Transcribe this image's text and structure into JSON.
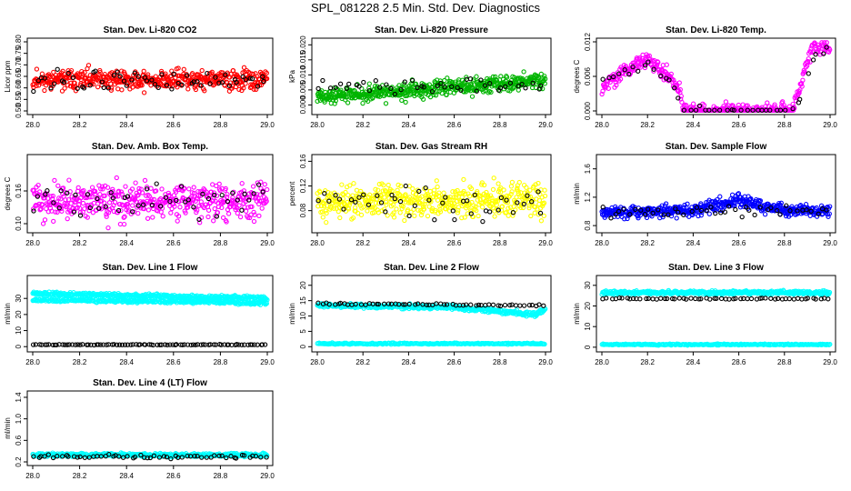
{
  "title": "SPL_081228  2.5 Min. Std. Dev. Diagnostics",
  "chart_data": [
    {
      "type": "scatter",
      "title": "Stan. Dev. Li-820 CO2",
      "ylabel": "Licor ppm",
      "xlim": [
        28.0,
        29.0
      ],
      "ylim": [
        0.5,
        0.8
      ],
      "x_ticks": [
        "28.0",
        "28.2",
        "28.4",
        "28.6",
        "28.8",
        "29.0"
      ],
      "y_ticks": [
        "0.50",
        "0.55",
        "0.60",
        "0.65",
        "0.70",
        "0.75",
        "0.80"
      ],
      "series": [
        {
          "name": "main",
          "color": "#ff0000",
          "base": 0.635,
          "spread": 0.04,
          "n": 480,
          "seed": 11
        },
        {
          "name": "hourly",
          "color": "#000000",
          "base": 0.63,
          "spread": 0.045,
          "n": 60,
          "seed": 12
        }
      ]
    },
    {
      "type": "scatter",
      "title": "Stan. Dev. Li-820 Pressure",
      "ylabel": "kPa",
      "xlim": [
        28.0,
        29.0
      ],
      "ylim": [
        -0.002,
        0.021
      ],
      "x_ticks": [
        "28.0",
        "28.2",
        "28.4",
        "28.6",
        "28.8",
        "29.0"
      ],
      "y_ticks": [
        "0.000",
        "0.005",
        "0.010",
        "0.015",
        "0.020"
      ],
      "series": [
        {
          "name": "main",
          "color": "#00b400",
          "trend": [
            [
              28.0,
              0.003
            ],
            [
              28.3,
              0.004
            ],
            [
              28.6,
              0.006
            ],
            [
              29.0,
              0.008
            ]
          ],
          "spread": 0.0025,
          "n": 520,
          "seed": 21
        },
        {
          "name": "hourly",
          "color": "#000000",
          "trend": [
            [
              28.0,
              0.006
            ],
            [
              29.0,
              0.007
            ]
          ],
          "spread": 0.002,
          "n": 45,
          "seed": 22
        }
      ]
    },
    {
      "type": "scatter",
      "title": "Stan. Dev. Li-820 Temp.",
      "ylabel": "degrees C",
      "xlim": [
        28.0,
        29.0
      ],
      "ylim": [
        0.0,
        0.012
      ],
      "x_ticks": [
        "28.0",
        "28.2",
        "28.4",
        "28.6",
        "28.8",
        "29.0"
      ],
      "y_ticks": [
        "0.000",
        "0.006",
        "0.012"
      ],
      "series": [
        {
          "name": "main",
          "color": "#ff00ff",
          "trend": [
            [
              28.0,
              0.004
            ],
            [
              28.1,
              0.007
            ],
            [
              28.2,
              0.009
            ],
            [
              28.3,
              0.006
            ],
            [
              28.34,
              0.0035
            ],
            [
              28.36,
              0.0
            ],
            [
              28.83,
              0.0
            ],
            [
              28.87,
              0.004
            ],
            [
              28.92,
              0.011
            ],
            [
              29.0,
              0.011
            ]
          ],
          "spread": 0.0012,
          "n": 420,
          "seed": 31
        },
        {
          "name": "hourly",
          "color": "#000000",
          "trend": [
            [
              28.0,
              0.005
            ],
            [
              28.2,
              0.008
            ],
            [
              28.3,
              0.005
            ],
            [
              28.36,
              0.0
            ],
            [
              28.85,
              0.0
            ],
            [
              28.92,
              0.009
            ],
            [
              29.0,
              0.011
            ]
          ],
          "spread": 0.001,
          "n": 45,
          "seed": 32
        }
      ]
    },
    {
      "type": "scatter",
      "title": "Stan. Dev. Amb. Box Temp.",
      "ylabel": "degrees C",
      "xlim": [
        28.0,
        29.0
      ],
      "ylim": [
        0.09,
        0.22
      ],
      "x_ticks": [
        "28.0",
        "28.2",
        "28.4",
        "28.6",
        "28.8",
        "29.0"
      ],
      "y_ticks": [
        "0.10",
        "0.16"
      ],
      "series": [
        {
          "name": "main",
          "color": "#ff00ff",
          "base": 0.14,
          "spread": 0.03,
          "n": 480,
          "seed": 41
        },
        {
          "name": "hourly",
          "color": "#000000",
          "base": 0.14,
          "spread": 0.025,
          "n": 50,
          "seed": 42
        }
      ]
    },
    {
      "type": "scatter",
      "title": "Stan. Dev. Gas Stream RH",
      "ylabel": "percent",
      "xlim": [
        28.0,
        29.0
      ],
      "ylim": [
        0.05,
        0.165
      ],
      "x_ticks": [
        "28.0",
        "28.2",
        "28.4",
        "28.6",
        "28.8",
        "29.0"
      ],
      "y_ticks": [
        "0.08",
        "0.12",
        "0.16"
      ],
      "series": [
        {
          "name": "main",
          "color": "#ffff00",
          "base": 0.095,
          "spread": 0.025,
          "n": 480,
          "seed": 51
        },
        {
          "name": "hourly",
          "color": "#000000",
          "base": 0.095,
          "spread": 0.025,
          "n": 45,
          "seed": 52
        }
      ]
    },
    {
      "type": "scatter",
      "title": "Stan. Dev. Sample Flow",
      "ylabel": "ml/min",
      "xlim": [
        28.0,
        29.0
      ],
      "ylim": [
        0.75,
        1.75
      ],
      "x_ticks": [
        "28.0",
        "28.2",
        "28.4",
        "28.6",
        "28.8",
        "29.0"
      ],
      "y_ticks": [
        "0.8",
        "1.2",
        "1.6"
      ],
      "series": [
        {
          "name": "main",
          "color": "#0000ff",
          "trend": [
            [
              28.0,
              0.97
            ],
            [
              28.4,
              1.02
            ],
            [
              28.6,
              1.15
            ],
            [
              28.8,
              1.02
            ],
            [
              29.0,
              1.0
            ]
          ],
          "spread": 0.08,
          "n": 480,
          "seed": 61
        },
        {
          "name": "hourly",
          "color": "#000000",
          "trend": [
            [
              28.0,
              1.0
            ],
            [
              29.0,
              1.02
            ]
          ],
          "spread": 0.08,
          "n": 45,
          "seed": 62
        }
      ]
    },
    {
      "type": "scatter",
      "title": "Stan. Dev. Line 1 Flow",
      "ylabel": "ml/min",
      "xlim": [
        28.0,
        29.0
      ],
      "ylim": [
        -1,
        42
      ],
      "x_ticks": [
        "28.0",
        "28.2",
        "28.4",
        "28.6",
        "28.8",
        "29.0"
      ],
      "y_ticks": [
        "0",
        "10",
        "20",
        "30"
      ],
      "series": [
        {
          "name": "upper",
          "color": "#00ffff",
          "trend": [
            [
              28.0,
              33
            ],
            [
              29.0,
              30
            ]
          ],
          "spread": 1.2,
          "n": 380,
          "seed": 71
        },
        {
          "name": "middle",
          "color": "#00ffff",
          "trend": [
            [
              28.0,
              29
            ],
            [
              28.7,
              28
            ],
            [
              29.0,
              27
            ]
          ],
          "spread": 1.0,
          "n": 300,
          "seed": 72
        },
        {
          "name": "low",
          "color": "#000000",
          "base": 1.2,
          "spread": 0.2,
          "n": 90,
          "seed": 73
        }
      ]
    },
    {
      "type": "scatter",
      "title": "Stan. Dev. Line 2 Flow",
      "ylabel": "ml/min",
      "xlim": [
        28.0,
        29.0
      ],
      "ylim": [
        -0.5,
        22
      ],
      "x_ticks": [
        "28.0",
        "28.2",
        "28.4",
        "28.6",
        "28.8",
        "29.0"
      ],
      "y_ticks": [
        "0",
        "5",
        "10",
        "15",
        "20"
      ],
      "series": [
        {
          "name": "main",
          "color": "#00ffff",
          "trend": [
            [
              28.0,
              13.5
            ],
            [
              28.6,
              12.8
            ],
            [
              28.95,
              10.5
            ],
            [
              29.0,
              12
            ]
          ],
          "spread": 0.7,
          "n": 420,
          "seed": 81
        },
        {
          "name": "low",
          "color": "#00ffff",
          "base": 1.0,
          "spread": 0.2,
          "n": 250,
          "seed": 82
        },
        {
          "name": "hourly",
          "color": "#000000",
          "trend": [
            [
              28.0,
              14
            ],
            [
              29.0,
              13.5
            ]
          ],
          "spread": 0.3,
          "n": 60,
          "seed": 83
        }
      ]
    },
    {
      "type": "scatter",
      "title": "Stan. Dev. Line 3 Flow",
      "ylabel": "ml/min",
      "xlim": [
        28.0,
        29.0
      ],
      "ylim": [
        -0.5,
        33
      ],
      "x_ticks": [
        "28.0",
        "28.2",
        "28.4",
        "28.6",
        "28.8",
        "29.0"
      ],
      "y_ticks": [
        "0",
        "10",
        "20",
        "30"
      ],
      "series": [
        {
          "name": "upper",
          "color": "#00ffff",
          "base": 26.5,
          "spread": 0.8,
          "n": 420,
          "seed": 91
        },
        {
          "name": "low",
          "color": "#00ffff",
          "base": 1.3,
          "spread": 0.3,
          "n": 260,
          "seed": 92
        },
        {
          "name": "hourly",
          "color": "#000000",
          "base": 23.5,
          "spread": 0.3,
          "n": 60,
          "seed": 93
        }
      ]
    },
    {
      "type": "scatter",
      "title": "Stan. Dev. Line 4 (LT) Flow",
      "ylabel": "ml/min",
      "xlim": [
        28.0,
        29.0
      ],
      "ylim": [
        0.2,
        1.45
      ],
      "x_ticks": [
        "28.0",
        "28.2",
        "28.4",
        "28.6",
        "28.8",
        "29.0"
      ],
      "y_ticks": [
        "0.2",
        "0.6",
        "1.0",
        "1.4"
      ],
      "series": [
        {
          "name": "main",
          "color": "#00ffff",
          "base": 0.33,
          "spread": 0.03,
          "n": 440,
          "seed": 101
        },
        {
          "name": "hourly",
          "color": "#000000",
          "base": 0.3,
          "spread": 0.03,
          "n": 60,
          "seed": 102
        }
      ]
    }
  ]
}
